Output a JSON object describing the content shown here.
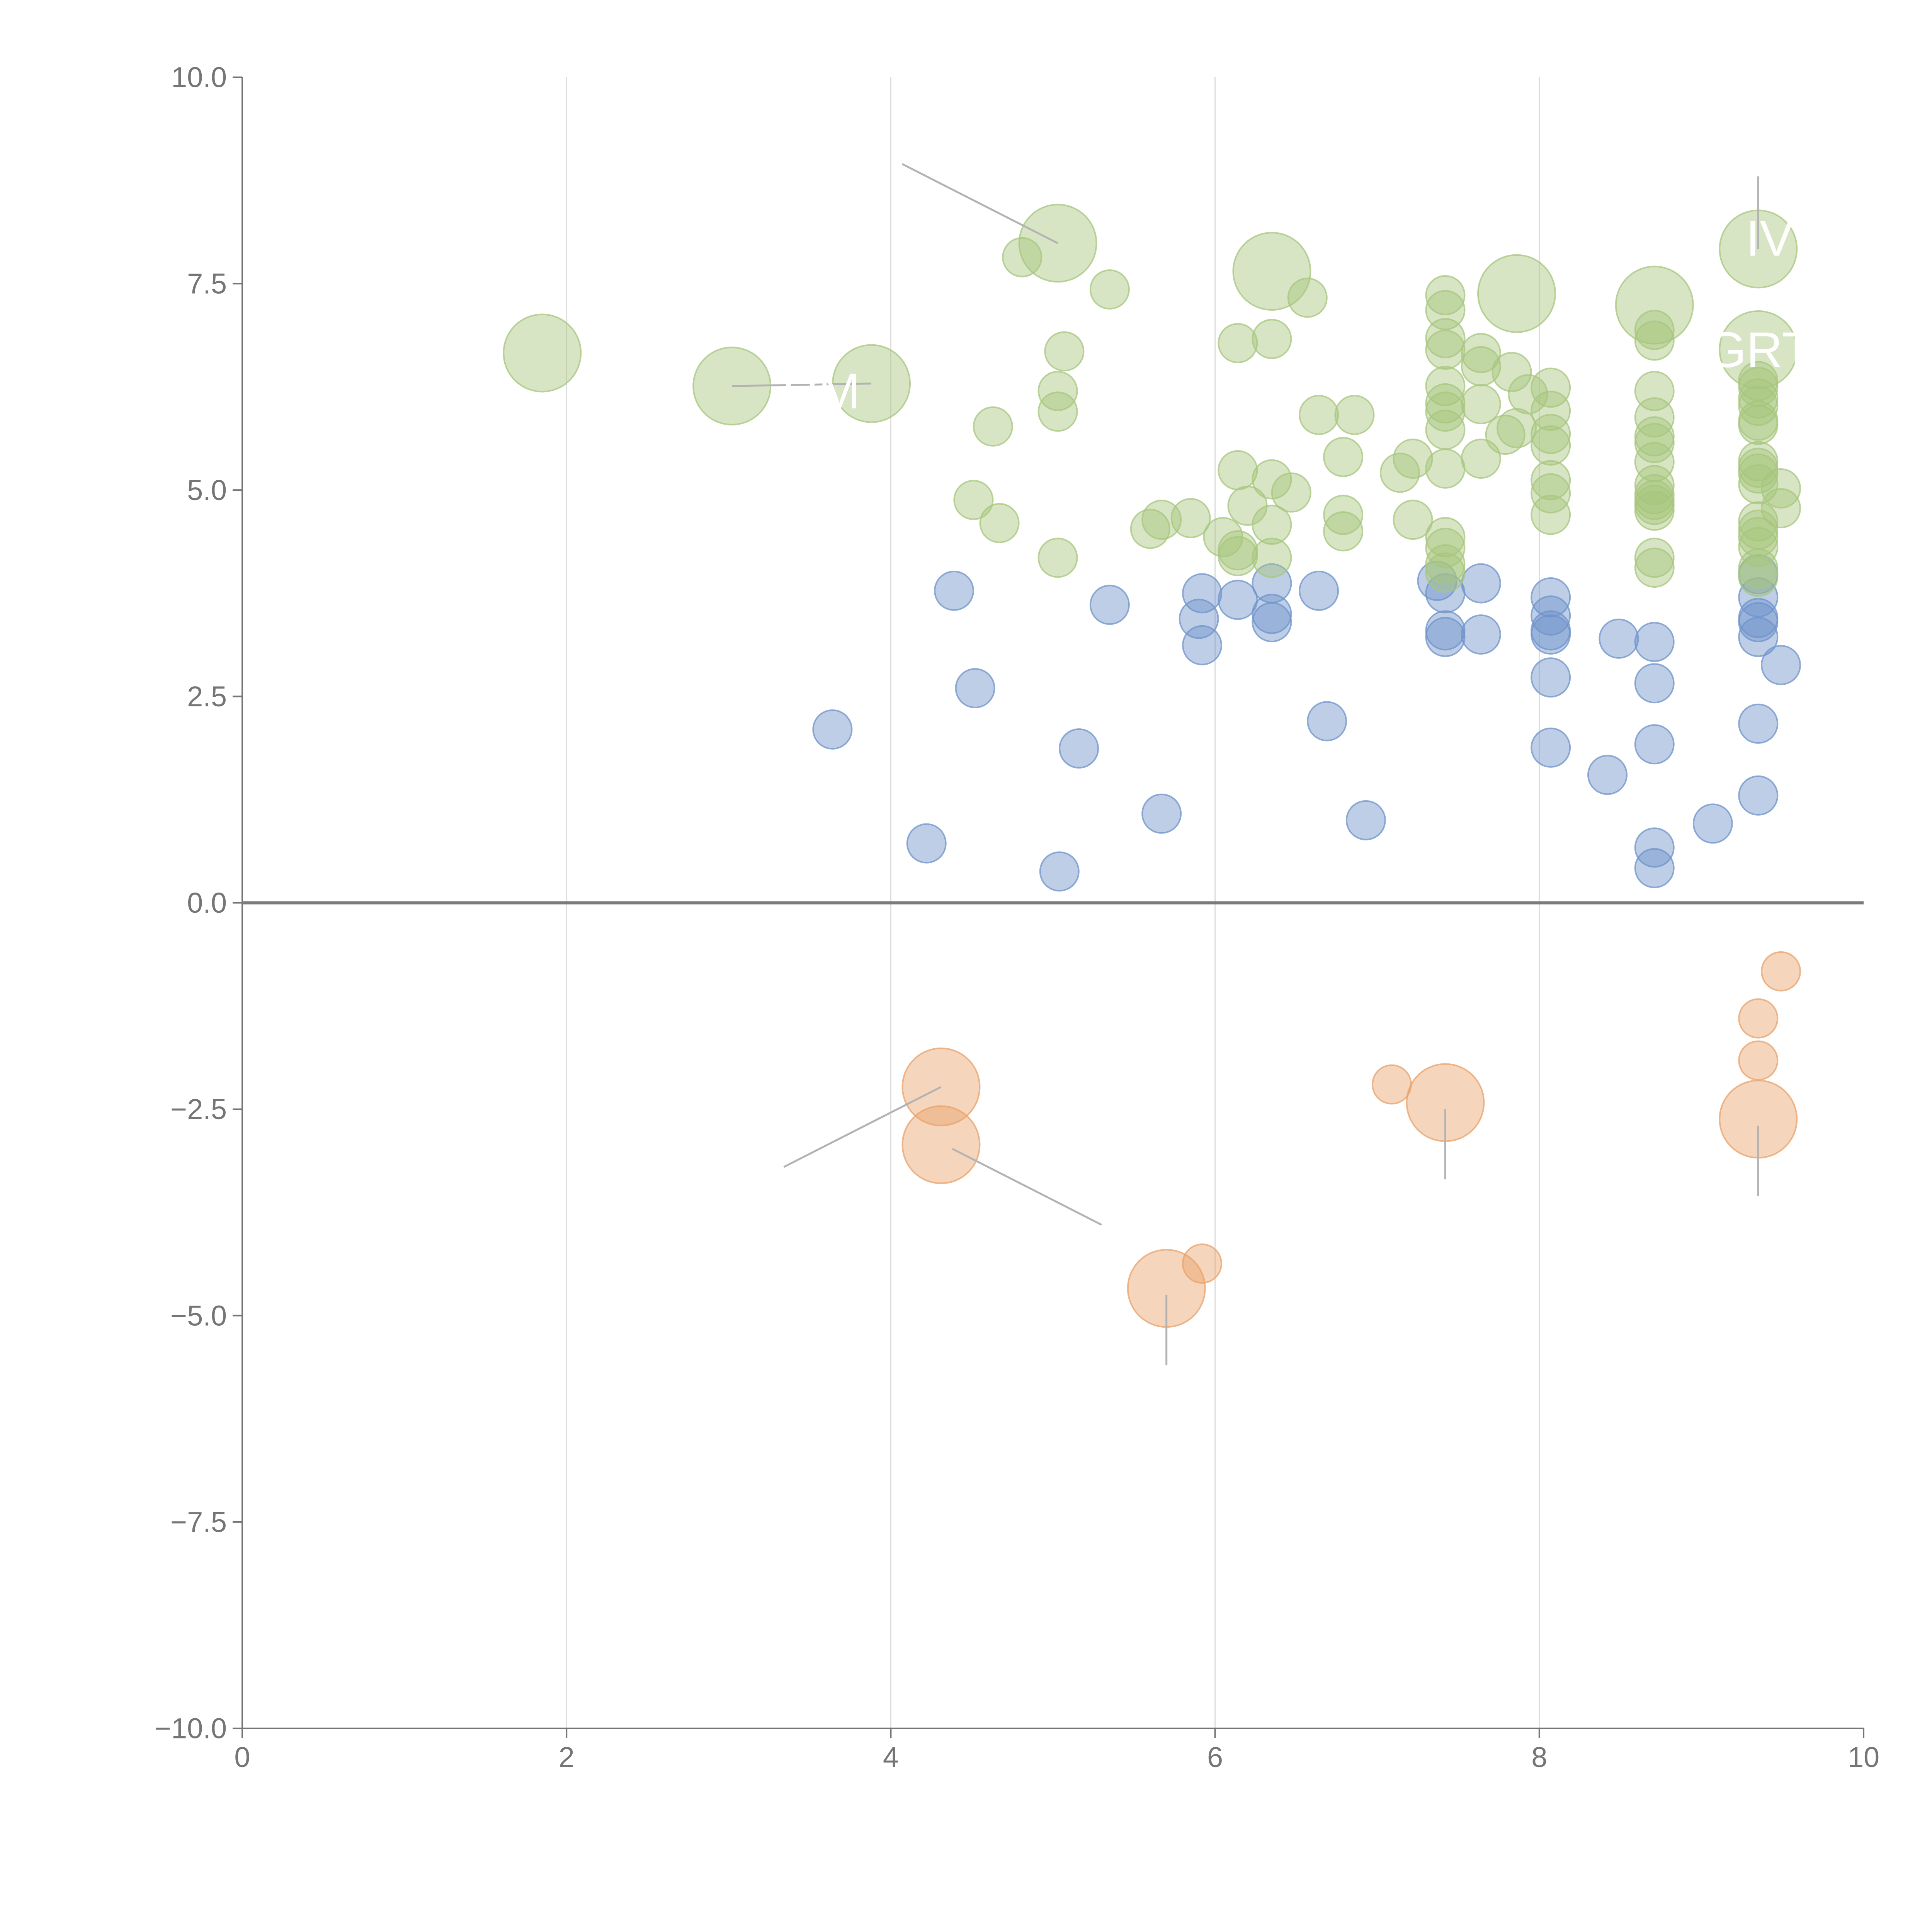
{
  "colors": {
    "blue": "#6f93c9",
    "green": "#a7c57d",
    "orange": "#e8a16b",
    "axis": "#757575",
    "grid": "#dddddd",
    "zero_line": "#7a7a7a",
    "leader": "#b3b3b3",
    "label": "#ffffff"
  },
  "chart_data": {
    "type": "scatter",
    "title": "",
    "xlabel": "",
    "ylabel": "",
    "xlim": [
      0,
      10
    ],
    "ylim": [
      -10,
      10
    ],
    "x_ticks": [
      0,
      2,
      4,
      6,
      8,
      10
    ],
    "x_tick_labels": [
      "0",
      "2",
      "4",
      "6",
      "8",
      "10"
    ],
    "y_ticks": [
      10,
      7.5,
      5,
      2.5,
      0,
      -2.5,
      -5,
      -7.5,
      -10
    ],
    "y_tick_labels": [
      "10.0",
      "7.5",
      "5.0",
      "2.5",
      "0.0",
      "−2.5",
      "−5.0",
      "−7.5",
      "−10.0"
    ],
    "vertical_gridlines_at": [
      2,
      4,
      6,
      8
    ],
    "reference_line_y": 0,
    "series": [
      {
        "name": "blue",
        "color_key": "blue",
        "size": 1,
        "points": [
          [
            3.64,
            2.1
          ],
          [
            4.22,
            0.72
          ],
          [
            4.39,
            3.78
          ],
          [
            4.52,
            2.6
          ],
          [
            5.04,
            0.38
          ],
          [
            5.16,
            1.87
          ],
          [
            5.35,
            3.61
          ],
          [
            5.67,
            1.08
          ],
          [
            5.92,
            3.75
          ],
          [
            5.9,
            3.44
          ],
          [
            5.92,
            3.12
          ],
          [
            6.14,
            3.67
          ],
          [
            6.35,
            3.87
          ],
          [
            6.35,
            3.5
          ],
          [
            6.35,
            3.4
          ],
          [
            6.64,
            3.78
          ],
          [
            6.69,
            2.2
          ],
          [
            6.93,
            1.0
          ],
          [
            7.37,
            3.9
          ],
          [
            7.42,
            3.75
          ],
          [
            7.42,
            3.3
          ],
          [
            7.42,
            3.22
          ],
          [
            7.64,
            3.87
          ],
          [
            7.64,
            3.25
          ],
          [
            8.07,
            3.7
          ],
          [
            8.07,
            3.48
          ],
          [
            8.07,
            3.3
          ],
          [
            8.07,
            3.25
          ],
          [
            8.07,
            2.73
          ],
          [
            8.07,
            1.88
          ],
          [
            8.42,
            1.55
          ],
          [
            8.49,
            3.2
          ],
          [
            8.71,
            3.16
          ],
          [
            8.71,
            2.66
          ],
          [
            8.71,
            1.92
          ],
          [
            8.71,
            0.67
          ],
          [
            8.71,
            0.42
          ],
          [
            9.07,
            0.96
          ],
          [
            9.35,
            3.98
          ],
          [
            9.35,
            3.7
          ],
          [
            9.35,
            3.45
          ],
          [
            9.35,
            3.4
          ],
          [
            9.35,
            3.22
          ],
          [
            9.35,
            2.17
          ],
          [
            9.35,
            1.3
          ],
          [
            9.49,
            2.88
          ]
        ]
      },
      {
        "name": "green",
        "color_key": "green",
        "size": 1,
        "points": [
          [
            4.63,
            5.77
          ],
          [
            4.51,
            4.88
          ],
          [
            4.67,
            4.6
          ],
          [
            4.81,
            7.82
          ],
          [
            5.03,
            6.2
          ],
          [
            5.03,
            5.95
          ],
          [
            5.03,
            4.18
          ],
          [
            5.07,
            6.68
          ],
          [
            5.35,
            7.43
          ],
          [
            5.6,
            4.53
          ],
          [
            5.67,
            4.64
          ],
          [
            5.85,
            4.66
          ],
          [
            6.05,
            4.43
          ],
          [
            6.14,
            6.78
          ],
          [
            6.14,
            5.24
          ],
          [
            6.14,
            4.27
          ],
          [
            6.14,
            4.2
          ],
          [
            6.2,
            4.81
          ],
          [
            6.35,
            6.83
          ],
          [
            6.35,
            5.13
          ],
          [
            6.35,
            4.58
          ],
          [
            6.35,
            4.18
          ],
          [
            6.47,
            4.97
          ],
          [
            6.57,
            7.33
          ],
          [
            6.64,
            5.91
          ],
          [
            6.79,
            5.4
          ],
          [
            6.79,
            4.7
          ],
          [
            6.79,
            4.5
          ],
          [
            6.86,
            5.91
          ],
          [
            7.14,
            5.21
          ],
          [
            7.22,
            5.38
          ],
          [
            7.22,
            4.64
          ],
          [
            7.42,
            7.36
          ],
          [
            7.42,
            7.18
          ],
          [
            7.42,
            6.84
          ],
          [
            7.42,
            6.7
          ],
          [
            7.42,
            6.26
          ],
          [
            7.42,
            6.05
          ],
          [
            7.42,
            5.95
          ],
          [
            7.42,
            5.73
          ],
          [
            7.42,
            5.26
          ],
          [
            7.42,
            4.43
          ],
          [
            7.42,
            4.3
          ],
          [
            7.42,
            4.1
          ],
          [
            7.42,
            4.0
          ],
          [
            7.64,
            6.66
          ],
          [
            7.64,
            6.5
          ],
          [
            7.64,
            6.04
          ],
          [
            7.64,
            5.38
          ],
          [
            7.83,
            6.43
          ],
          [
            7.93,
            6.16
          ],
          [
            7.79,
            5.67
          ],
          [
            7.86,
            5.75
          ],
          [
            8.07,
            6.24
          ],
          [
            8.07,
            5.96
          ],
          [
            8.07,
            5.68
          ],
          [
            8.07,
            5.54
          ],
          [
            8.07,
            5.12
          ],
          [
            8.07,
            4.96
          ],
          [
            8.07,
            4.7
          ],
          [
            8.71,
            6.94
          ],
          [
            8.71,
            6.81
          ],
          [
            8.71,
            6.2
          ],
          [
            8.71,
            5.88
          ],
          [
            8.71,
            5.65
          ],
          [
            8.71,
            5.57
          ],
          [
            8.71,
            5.34
          ],
          [
            8.71,
            5.06
          ],
          [
            8.71,
            4.95
          ],
          [
            8.71,
            4.88
          ],
          [
            8.71,
            4.82
          ],
          [
            8.71,
            4.75
          ],
          [
            8.71,
            4.18
          ],
          [
            8.71,
            4.06
          ],
          [
            9.35,
            6.32
          ],
          [
            9.35,
            6.25
          ],
          [
            9.35,
            6.11
          ],
          [
            9.35,
            6.02
          ],
          [
            9.35,
            5.84
          ],
          [
            9.35,
            5.79
          ],
          [
            9.35,
            5.35
          ],
          [
            9.35,
            5.27
          ],
          [
            9.35,
            5.2
          ],
          [
            9.35,
            5.07
          ],
          [
            9.35,
            4.62
          ],
          [
            9.35,
            4.52
          ],
          [
            9.35,
            4.43
          ],
          [
            9.35,
            4.31
          ],
          [
            9.35,
            4.05
          ],
          [
            9.35,
            3.95
          ],
          [
            9.49,
            5.02
          ],
          [
            9.49,
            4.78
          ]
        ]
      },
      {
        "name": "green-large",
        "color_key": "green",
        "size": 2,
        "points": [
          [
            1.85,
            6.66
          ],
          [
            3.02,
            6.26
          ],
          [
            3.88,
            6.29
          ],
          [
            5.03,
            7.99
          ],
          [
            6.35,
            7.65
          ],
          [
            7.86,
            7.38
          ],
          [
            8.71,
            7.24
          ],
          [
            9.35,
            7.92
          ],
          [
            9.35,
            6.7
          ]
        ]
      },
      {
        "name": "orange",
        "color_key": "orange",
        "size": 1,
        "points": [
          [
            5.92,
            -4.37
          ],
          [
            7.09,
            -2.2
          ],
          [
            9.49,
            -0.83
          ],
          [
            9.35,
            -1.4
          ],
          [
            9.35,
            -1.91
          ]
        ]
      },
      {
        "name": "orange-large",
        "color_key": "orange",
        "size": 2,
        "points": [
          [
            4.31,
            -2.23
          ],
          [
            4.31,
            -2.93
          ],
          [
            5.7,
            -4.67
          ],
          [
            7.42,
            -2.42
          ],
          [
            9.35,
            -2.62
          ]
        ]
      }
    ],
    "annotations": [
      {
        "text": "IV",
        "x": 9.35,
        "y": 7.92,
        "label_x": 9.42,
        "label_y": 8.05,
        "line": [
          [
            9.35,
            8.8
          ],
          [
            9.35,
            7.92
          ]
        ]
      },
      {
        "text": "GRT",
        "x": 9.35,
        "y": 6.7,
        "label_x": 9.36,
        "label_y": 6.7,
        "line": null
      },
      {
        "text": "RM",
        "x": 3.88,
        "y": 6.29,
        "label_x": 3.57,
        "label_y": 6.2,
        "line": [
          [
            3.02,
            6.26
          ],
          [
            3.88,
            6.29
          ]
        ]
      },
      {
        "text": "",
        "x": 5.03,
        "y": 7.99,
        "label_x": 4.0,
        "label_y": 9.0,
        "line": [
          [
            4.07,
            8.95
          ],
          [
            5.03,
            7.99
          ]
        ]
      },
      {
        "text": "",
        "x": 4.31,
        "y": -2.23,
        "label_x": 3.3,
        "label_y": -3.2,
        "line": [
          [
            3.34,
            -3.2
          ],
          [
            4.31,
            -2.23
          ]
        ]
      },
      {
        "text": "",
        "x": 4.31,
        "y": -2.93,
        "label_x": 5.3,
        "label_y": -3.9,
        "line": [
          [
            4.38,
            -2.98
          ],
          [
            5.3,
            -3.9
          ]
        ]
      },
      {
        "text": "",
        "x": 5.7,
        "y": -4.67,
        "label_x": 5.7,
        "label_y": -5.6,
        "line": [
          [
            5.7,
            -4.75
          ],
          [
            5.7,
            -5.6
          ]
        ]
      },
      {
        "text": "",
        "x": 7.42,
        "y": -2.42,
        "label_x": 7.42,
        "label_y": -3.35,
        "line": [
          [
            7.42,
            -2.5
          ],
          [
            7.42,
            -3.35
          ]
        ]
      },
      {
        "text": "",
        "x": 9.35,
        "y": -2.62,
        "label_x": 9.35,
        "label_y": -3.55,
        "line": [
          [
            9.35,
            -2.7
          ],
          [
            9.35,
            -3.55
          ]
        ]
      }
    ]
  }
}
